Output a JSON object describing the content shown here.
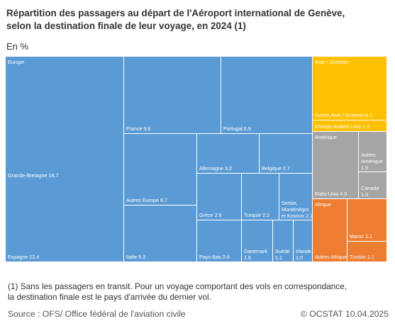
{
  "title_line1": "Répartition des passagers au départ de l'Aéroport international de Genève,",
  "title_line2": "selon la destination finale de leur voyage, en 2024 (1)",
  "unit": "En %",
  "footnote_line1": "(1) Sans les passagers en transit. Pour un voyage comportant des vols en correspondance,",
  "footnote_line2": "la destination finale est le pays d'arrivée du dernier vol.",
  "source": "Source : OFS/ Office fédéral de l'aviation civile",
  "copyright": "© OCSTAT 10.04.2025",
  "chart_data": {
    "type": "treemap",
    "colors": {
      "Europe": "#5b9bd5",
      "Asie / Océanie": "#ffc000",
      "Amérique": "#a5a5a5",
      "Afrique": "#ed7d31"
    },
    "groups": [
      {
        "name": "Europe",
        "items": [
          {
            "name": "Grande-Bretagne",
            "value": 18.7
          },
          {
            "name": "Espagne",
            "value": 12.4
          },
          {
            "name": "France",
            "value": 9.6
          },
          {
            "name": "Portugal",
            "value": 8.9
          },
          {
            "name": "Autres Europe",
            "value": 6.7
          },
          {
            "name": "Italie",
            "value": 5.3
          },
          {
            "name": "Allemagne",
            "value": 3.2
          },
          {
            "name": "Belgique",
            "value": 2.7
          },
          {
            "name": "Grèce",
            "value": 2.6
          },
          {
            "name": "Turquie",
            "value": 2.2
          },
          {
            "name": "Serbie, Monténégro et Kosovo",
            "value": 2.1
          },
          {
            "name": "Pays-Bas",
            "value": 2.4
          },
          {
            "name": "Danemark",
            "value": 1.6
          },
          {
            "name": "Suède",
            "value": 1.1
          },
          {
            "name": "Irlande",
            "value": 1.0
          }
        ]
      },
      {
        "name": "Asie / Océanie",
        "items": [
          {
            "name": "Autres Asie / Océanie",
            "value": 6.1
          },
          {
            "name": "Emirats Arabes Unis",
            "value": 1.1
          }
        ]
      },
      {
        "name": "Amérique",
        "items": [
          {
            "name": "Etats-Unis",
            "value": 4.0
          },
          {
            "name": "Autres Amérique",
            "value": 1.5
          },
          {
            "name": "Canada",
            "value": 1.0
          }
        ]
      },
      {
        "name": "Afrique",
        "items": [
          {
            "name": "Autres Afrique",
            "value": 2.8
          },
          {
            "name": "Maroc",
            "value": 2.1
          },
          {
            "name": "Tunisie",
            "value": 1.1
          }
        ]
      }
    ]
  }
}
